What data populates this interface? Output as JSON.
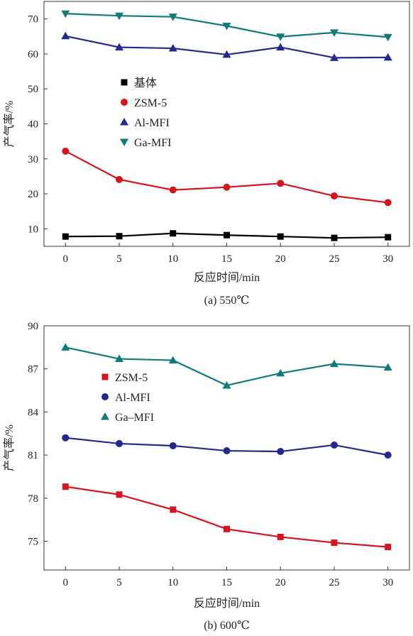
{
  "chart_data": [
    {
      "type": "line",
      "caption": "(a) 550℃",
      "xlabel": "反应时间/min",
      "ylabel": "产气率/%",
      "x": [
        0,
        5,
        10,
        15,
        20,
        25,
        30
      ],
      "xlim": [
        -2,
        32
      ],
      "ylim": [
        5,
        75
      ],
      "yticks": [
        10,
        20,
        30,
        40,
        50,
        60,
        70
      ],
      "xticks": [
        0,
        5,
        10,
        15,
        20,
        25,
        30
      ],
      "legend_position": "center-left",
      "series": [
        {
          "name": "基体",
          "color": "#000000",
          "marker": "square",
          "values": [
            7.8,
            7.9,
            8.7,
            8.2,
            7.8,
            7.4,
            7.6
          ]
        },
        {
          "name": "ZSM-5",
          "color": "#d7141e",
          "marker": "circle",
          "values": [
            32.2,
            24.1,
            21.1,
            21.9,
            23.0,
            19.4,
            17.5
          ]
        },
        {
          "name": "Al-MFI",
          "color": "#24278e",
          "marker": "triangle-up",
          "values": [
            65.1,
            61.9,
            61.6,
            59.8,
            61.9,
            58.9,
            59.0
          ]
        },
        {
          "name": "Ga-MFI",
          "color": "#117a7a",
          "marker": "triangle-down",
          "values": [
            71.5,
            70.9,
            70.6,
            68.0,
            64.9,
            66.1,
            64.8
          ]
        }
      ]
    },
    {
      "type": "line",
      "caption": "(b) 600℃",
      "xlabel": "反应时间/min",
      "ylabel": "产气率/%",
      "x": [
        0,
        5,
        10,
        15,
        20,
        25,
        30
      ],
      "xlim": [
        -2,
        32
      ],
      "ylim": [
        73,
        90
      ],
      "yticks": [
        75,
        78,
        81,
        84,
        87,
        90
      ],
      "xticks": [
        0,
        5,
        10,
        15,
        20,
        25,
        30
      ],
      "legend_position": "center-left",
      "series": [
        {
          "name": "ZSM-5",
          "color": "#d7141e",
          "marker": "square",
          "values": [
            78.8,
            78.25,
            77.2,
            75.85,
            75.3,
            74.9,
            74.6
          ]
        },
        {
          "name": "Al-MFI",
          "color": "#24278e",
          "marker": "circle",
          "values": [
            82.2,
            81.8,
            81.65,
            81.3,
            81.25,
            81.7,
            81.0
          ]
        },
        {
          "name": "Ga–MFI",
          "color": "#117a7a",
          "marker": "triangle-up",
          "values": [
            88.5,
            87.7,
            87.6,
            85.85,
            86.7,
            87.35,
            87.1
          ]
        }
      ]
    }
  ]
}
